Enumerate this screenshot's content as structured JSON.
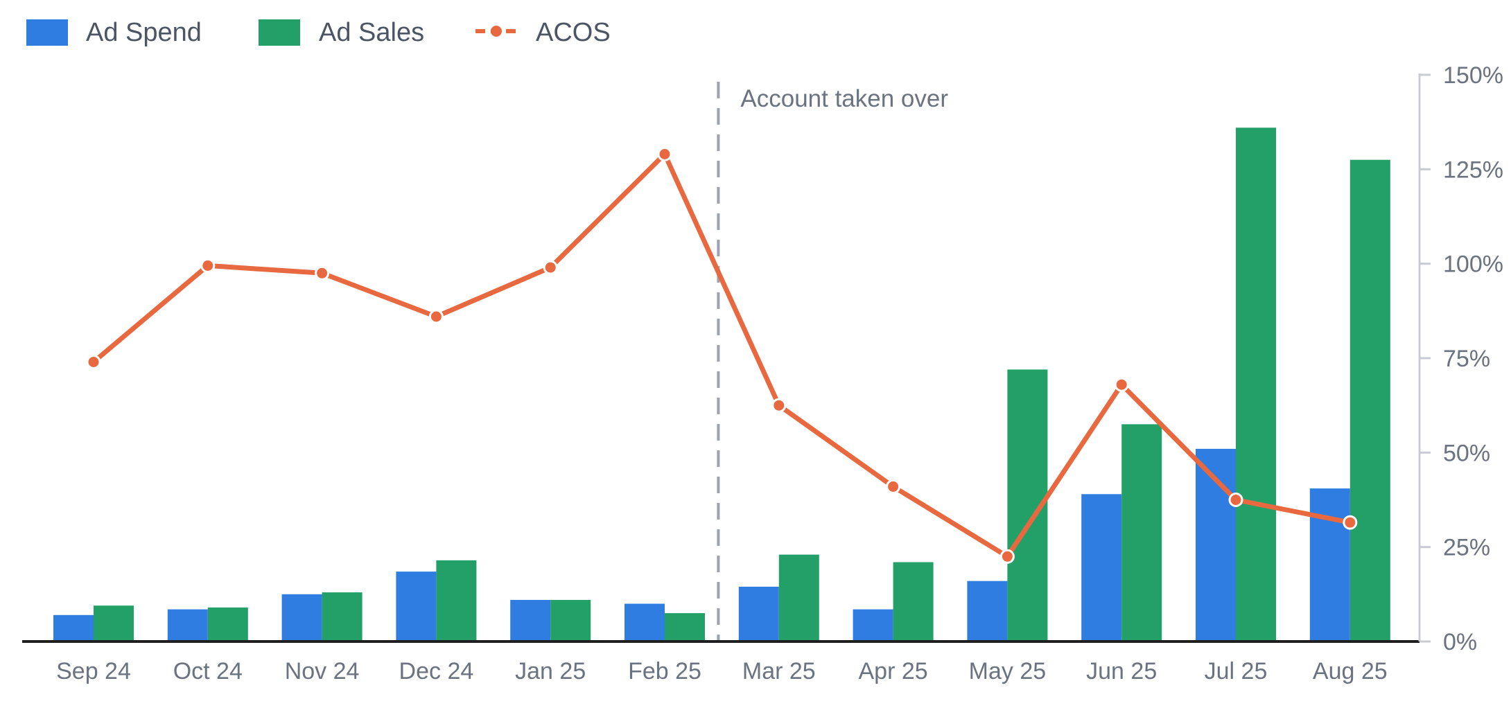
{
  "colors": {
    "ad_spend": "#2f7de1",
    "ad_sales": "#23a067",
    "acos": "#e8693f",
    "baseline": "#1f1f1f",
    "right_axis": "#c8ccd2",
    "marker_line": "#9ca3af",
    "text": "#6b7280"
  },
  "chart_data": {
    "type": "bar",
    "categories": [
      "Sep 24",
      "Oct 24",
      "Nov 24",
      "Dec 24",
      "Jan 25",
      "Feb 25",
      "Mar 25",
      "Apr 25",
      "May 25",
      "Jun 25",
      "Jul 25",
      "Aug 25"
    ],
    "series": [
      {
        "name": "Ad Spend",
        "kind": "bar",
        "axis": "left",
        "color_key": "ad_spend",
        "values": [
          7,
          8.5,
          12.5,
          18.5,
          11,
          10,
          14.5,
          8.5,
          16,
          39,
          51,
          40.5
        ]
      },
      {
        "name": "Ad Sales",
        "kind": "bar",
        "axis": "left",
        "color_key": "ad_sales",
        "values": [
          9.5,
          9,
          13,
          21.5,
          11,
          7.5,
          23,
          21,
          72,
          57.5,
          136,
          127.5
        ]
      },
      {
        "name": "ACOS",
        "kind": "line",
        "axis": "right",
        "unit": "%",
        "color_key": "acos",
        "values": [
          74,
          99.5,
          97.5,
          86,
          99,
          129,
          62.5,
          41,
          22.5,
          68,
          37.5,
          31.5
        ]
      }
    ],
    "y_right": {
      "ticks": [
        "0%",
        "25%",
        "50%",
        "75%",
        "100%",
        "125%",
        "150%"
      ],
      "tick_values": [
        0,
        25,
        50,
        75,
        100,
        125,
        150
      ],
      "range": [
        0,
        150
      ]
    },
    "y_left_range": [
      0,
      150
    ],
    "y_left_labels_shown": false,
    "grid": false,
    "legend": {
      "placement": "top-left",
      "items": [
        {
          "label": "Ad Spend",
          "symbol": "square",
          "color_key": "ad_spend"
        },
        {
          "label": "Ad Sales",
          "symbol": "square",
          "color_key": "ad_sales"
        },
        {
          "label": "ACOS",
          "symbol": "line-marker",
          "color_key": "acos"
        }
      ]
    },
    "annotations": [
      {
        "type": "vertical-dashed-line",
        "between": [
          "Feb 25",
          "Mar 25"
        ],
        "text": "Account taken over"
      }
    ]
  }
}
